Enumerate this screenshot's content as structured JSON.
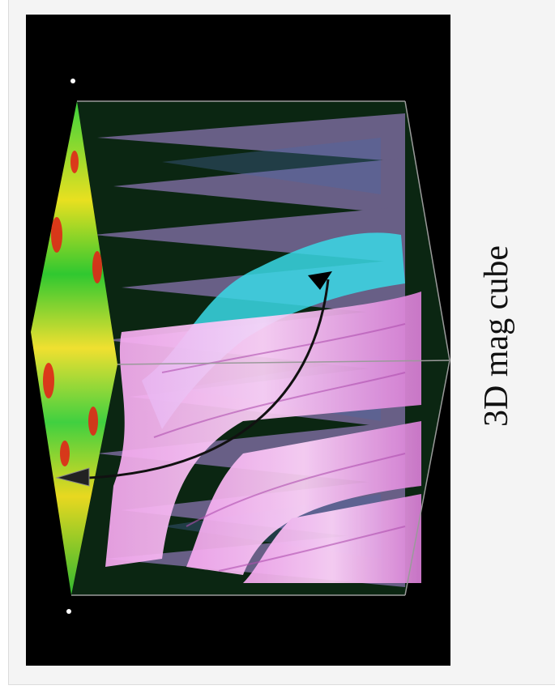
{
  "caption": "3D mag cube"
}
